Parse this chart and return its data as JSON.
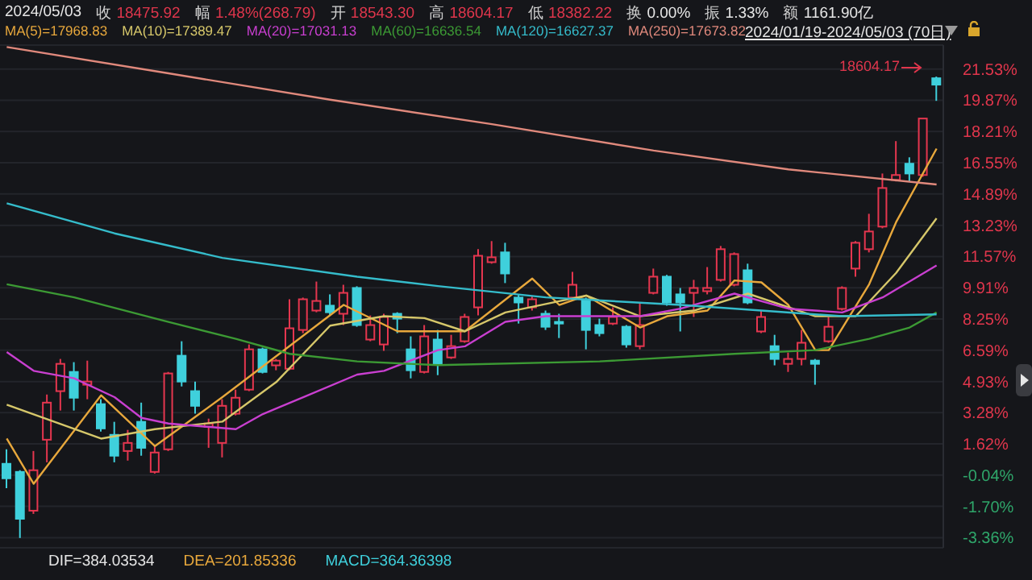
{
  "chart_data": {
    "type": "candlestick",
    "categories": [
      null,
      null,
      null,
      null,
      null,
      null,
      null,
      null,
      null,
      null,
      null,
      null,
      null,
      null,
      null,
      null,
      null,
      null,
      null,
      null,
      null,
      null,
      null,
      null,
      null,
      null,
      null,
      null,
      null,
      null,
      null,
      null,
      null,
      null,
      null,
      null,
      null,
      null,
      null,
      null,
      null,
      null,
      null,
      null,
      null,
      null,
      null,
      null,
      null,
      null,
      null,
      null,
      null,
      null,
      null,
      null,
      null,
      null,
      null,
      null,
      null,
      null,
      null,
      null,
      null,
      null,
      null,
      null,
      null,
      null
    ],
    "ohlc": [
      [
        0.56,
        1.33,
        -0.73,
        -0.21
      ],
      [
        0.13,
        0.22,
        -3.38,
        -2.36
      ],
      [
        -1.93,
        1.24,
        -2.1,
        0.22
      ],
      [
        1.84,
        4.24,
        0.64,
        3.81
      ],
      [
        4.42,
        6.13,
        3.39,
        5.87
      ],
      [
        5.44,
        5.96,
        3.39,
        4.07
      ],
      [
        4.76,
        6.04,
        3.99,
        4.93
      ],
      [
        3.73,
        3.99,
        2.27,
        2.44
      ],
      [
        2.1,
        2.79,
        0.64,
        0.99
      ],
      [
        1.24,
        2.36,
        0.73,
        1.67
      ],
      [
        2.79,
        3.81,
        0.99,
        1.41
      ],
      [
        0.13,
        1.5,
        0.04,
        1.16
      ],
      [
        1.33,
        5.44,
        1.24,
        5.36
      ],
      [
        6.3,
        7.07,
        4.67,
        4.93
      ],
      [
        4.42,
        4.93,
        3.22,
        3.64
      ],
      [
        2.53,
        2.96,
        1.41,
        2.7
      ],
      [
        1.67,
        3.99,
        0.9,
        3.64
      ],
      [
        3.22,
        4.5,
        3.13,
        4.07
      ],
      [
        4.5,
        6.9,
        4.42,
        6.64
      ],
      [
        6.64,
        6.73,
        5.36,
        5.44
      ],
      [
        5.79,
        6.13,
        5.53,
        6.04
      ],
      [
        5.61,
        9.3,
        5.53,
        7.76
      ],
      [
        7.67,
        9.39,
        7.5,
        9.3
      ],
      [
        8.7,
        10.24,
        8.61,
        9.21
      ],
      [
        8.96,
        9.56,
        8.44,
        8.61
      ],
      [
        8.53,
        10.07,
        7.93,
        9.64
      ],
      [
        9.9,
        9.99,
        7.84,
        7.93
      ],
      [
        7.16,
        8.44,
        7.07,
        7.93
      ],
      [
        6.9,
        8.53,
        6.56,
        8.36
      ],
      [
        8.53,
        8.61,
        7.5,
        8.27
      ],
      [
        6.64,
        7.33,
        5.1,
        5.53
      ],
      [
        5.44,
        7.93,
        5.36,
        7.33
      ],
      [
        7.16,
        7.67,
        5.27,
        5.87
      ],
      [
        6.21,
        7.41,
        6.13,
        6.81
      ],
      [
        7.07,
        8.53,
        6.99,
        8.36
      ],
      [
        8.87,
        11.96,
        8.44,
        11.61
      ],
      [
        11.27,
        12.39,
        11.19,
        11.53
      ],
      [
        11.79,
        12.3,
        10.16,
        10.67
      ],
      [
        9.39,
        9.56,
        8.01,
        9.13
      ],
      [
        8.87,
        9.47,
        8.7,
        9.3
      ],
      [
        8.53,
        8.7,
        7.67,
        7.84
      ],
      [
        8.1,
        8.53,
        7.24,
        8.01
      ],
      [
        9.39,
        10.76,
        9.21,
        10.07
      ],
      [
        9.3,
        9.39,
        6.64,
        7.67
      ],
      [
        7.93,
        8.27,
        7.33,
        7.5
      ],
      [
        8.01,
        8.87,
        7.93,
        8.36
      ],
      [
        7.84,
        7.93,
        6.73,
        6.9
      ],
      [
        6.81,
        9.13,
        6.64,
        7.93
      ],
      [
        9.64,
        10.93,
        9.56,
        10.5
      ],
      [
        10.5,
        10.59,
        8.96,
        9.13
      ],
      [
        9.56,
        9.9,
        7.59,
        9.13
      ],
      [
        9.64,
        10.33,
        8.36,
        9.9
      ],
      [
        9.73,
        11.01,
        9.56,
        9.9
      ],
      [
        10.33,
        12.13,
        10.24,
        11.96
      ],
      [
        10.07,
        11.79,
        9.99,
        11.7
      ],
      [
        10.84,
        11.19,
        9.04,
        9.13
      ],
      [
        7.59,
        8.7,
        7.5,
        8.36
      ],
      [
        6.81,
        7.41,
        5.79,
        6.13
      ],
      [
        5.87,
        6.47,
        5.44,
        6.13
      ],
      [
        6.13,
        7.67,
        5.79,
        6.99
      ],
      [
        6.04,
        6.13,
        4.76,
        5.87
      ],
      [
        7.07,
        8.36,
        6.99,
        7.84
      ],
      [
        8.79,
        9.99,
        8.7,
        9.9
      ],
      [
        10.93,
        12.39,
        10.5,
        12.3
      ],
      [
        11.96,
        13.84,
        11.79,
        12.9
      ],
      [
        13.16,
        15.98,
        13.07,
        15.21
      ],
      [
        15.64,
        17.7,
        15.56,
        15.9
      ],
      [
        16.5,
        16.84,
        15.56,
        15.98
      ],
      [
        15.9,
        18.9,
        15.81,
        18.9
      ],
      [
        21.04,
        21.13,
        19.84,
        20.7
      ]
    ],
    "series": [
      {
        "type": "line",
        "name": "MA(5)=17968.83",
        "color": "#e8a83c",
        "values": [
          1.9,
          null,
          -0.5,
          null,
          null,
          null,
          null,
          4.2,
          null,
          null,
          null,
          1.5,
          null,
          null,
          null,
          null,
          4.1,
          null,
          null,
          null,
          null,
          null,
          null,
          null,
          null,
          9.0,
          null,
          null,
          null,
          7.6,
          null,
          null,
          null,
          null,
          7.6,
          null,
          null,
          null,
          null,
          10.4,
          null,
          9.0,
          null,
          9.5,
          null,
          null,
          null,
          7.8,
          null,
          8.4,
          null,
          null,
          8.7,
          null,
          10.3,
          null,
          10.2,
          null,
          9.0,
          null,
          6.6,
          6.6,
          null,
          null,
          10.1,
          null,
          13.4,
          null,
          null,
          17.3
        ]
      },
      {
        "type": "line",
        "name": "MA(10)=17389.47",
        "color": "#d6c76a",
        "values": [
          3.7,
          null,
          null,
          null,
          null,
          null,
          null,
          1.9,
          null,
          null,
          null,
          2.4,
          null,
          null,
          null,
          null,
          2.8,
          null,
          null,
          null,
          4.9,
          null,
          null,
          null,
          7.9,
          null,
          null,
          null,
          8.4,
          null,
          null,
          8.3,
          null,
          null,
          7.6,
          null,
          null,
          8.6,
          null,
          null,
          null,
          null,
          null,
          9.5,
          null,
          null,
          null,
          8.4,
          null,
          null,
          null,
          8.7,
          null,
          null,
          null,
          9.6,
          null,
          null,
          null,
          null,
          8.4,
          null,
          null,
          8.4,
          null,
          null,
          10.7,
          null,
          null,
          13.6
        ]
      },
      {
        "type": "line",
        "name": "MA(20)=17031.13",
        "color": "#c93fd0",
        "values": [
          6.5,
          null,
          5.5,
          null,
          null,
          5.1,
          null,
          null,
          4.1,
          null,
          3.0,
          null,
          2.7,
          null,
          null,
          null,
          null,
          2.4,
          null,
          3.2,
          null,
          null,
          4.1,
          null,
          null,
          null,
          5.3,
          null,
          5.5,
          null,
          null,
          null,
          6.6,
          null,
          6.8,
          null,
          null,
          8.1,
          null,
          null,
          8.4,
          null,
          null,
          8.4,
          null,
          null,
          null,
          8.4,
          null,
          null,
          8.8,
          null,
          null,
          null,
          9.6,
          null,
          null,
          null,
          8.8,
          null,
          null,
          null,
          8.6,
          null,
          null,
          9.4,
          null,
          null,
          null,
          11.1
        ]
      },
      {
        "type": "line",
        "name": "MA(60)=16636.54",
        "color": "#3c9a34",
        "values": [
          10.1,
          null,
          null,
          null,
          null,
          9.4,
          null,
          null,
          null,
          null,
          null,
          null,
          8.1,
          null,
          null,
          null,
          null,
          7.2,
          null,
          null,
          null,
          6.4,
          null,
          null,
          null,
          null,
          6.0,
          null,
          null,
          null,
          null,
          null,
          5.8,
          null,
          null,
          null,
          null,
          null,
          null,
          null,
          null,
          null,
          null,
          null,
          6.0,
          null,
          null,
          null,
          null,
          null,
          null,
          null,
          null,
          null,
          6.4,
          null,
          null,
          null,
          null,
          null,
          6.6,
          null,
          null,
          null,
          7.2,
          null,
          null,
          7.8,
          null,
          8.6
        ]
      },
      {
        "type": "line",
        "name": "MA(120)=16627.37",
        "color": "#35bccb",
        "values": [
          14.4,
          null,
          null,
          null,
          null,
          null,
          null,
          null,
          12.8,
          null,
          null,
          null,
          null,
          null,
          null,
          null,
          11.5,
          null,
          null,
          null,
          null,
          null,
          null,
          null,
          null,
          null,
          10.5,
          null,
          null,
          null,
          null,
          null,
          10.0,
          null,
          null,
          null,
          null,
          null,
          null,
          null,
          9.4,
          null,
          null,
          null,
          null,
          null,
          null,
          null,
          null,
          null,
          9.0,
          null,
          null,
          null,
          null,
          null,
          8.7,
          null,
          null,
          null,
          null,
          null,
          8.4,
          null,
          null,
          null,
          null,
          null,
          null,
          8.5
        ]
      },
      {
        "type": "line",
        "name": "MA(250)=17673.82",
        "color": "#e0897c",
        "values": [
          22.7,
          null,
          null,
          null,
          null,
          null,
          null,
          null,
          null,
          null,
          null,
          null,
          21.3,
          null,
          null,
          null,
          null,
          null,
          null,
          null,
          null,
          null,
          null,
          null,
          19.9,
          null,
          null,
          null,
          null,
          null,
          null,
          null,
          null,
          null,
          null,
          null,
          18.6,
          null,
          null,
          null,
          null,
          null,
          null,
          null,
          null,
          null,
          null,
          null,
          17.2,
          null,
          null,
          null,
          null,
          null,
          null,
          null,
          null,
          null,
          16.2,
          null,
          null,
          null,
          null,
          null,
          null,
          null,
          null,
          null,
          null,
          15.4
        ]
      }
    ],
    "ylim": [
      -3.9,
      22.8
    ],
    "yticks": [
      {
        "value": 21.53,
        "label": "21.53%"
      },
      {
        "value": 19.87,
        "label": "19.87%"
      },
      {
        "value": 18.21,
        "label": "18.21%"
      },
      {
        "value": 16.55,
        "label": "16.55%"
      },
      {
        "value": 14.89,
        "label": "14.89%"
      },
      {
        "value": 13.23,
        "label": "13.23%"
      },
      {
        "value": 11.57,
        "label": "11.57%"
      },
      {
        "value": 9.91,
        "label": "9.91%"
      },
      {
        "value": 8.25,
        "label": "8.25%"
      },
      {
        "value": 6.59,
        "label": "6.59%"
      },
      {
        "value": 4.93,
        "label": "4.93%"
      },
      {
        "value": 3.28,
        "label": "3.28%"
      },
      {
        "value": 1.62,
        "label": "1.62%"
      },
      {
        "value": -0.04,
        "label": "-0.04%"
      },
      {
        "value": -1.7,
        "label": "-1.70%"
      },
      {
        "value": -3.36,
        "label": "-3.36%"
      }
    ],
    "tick_labels": "y",
    "grid": "y",
    "legend": "top left",
    "marker": "none",
    "annotations": [
      "2024/05/03",
      "收 18475.92",
      "幅 1.48%(268.79)",
      "开 18543.30",
      "高 18604.17",
      "低 18382.22",
      "换 0.00%",
      "振 1.33%",
      "额 1161.90亿",
      "2024/01/19-2024/05/03 (70日)",
      "DIF=384.03534",
      "DEA=201.85336",
      "MACD=364.36398",
      "18604.17"
    ]
  }
}
